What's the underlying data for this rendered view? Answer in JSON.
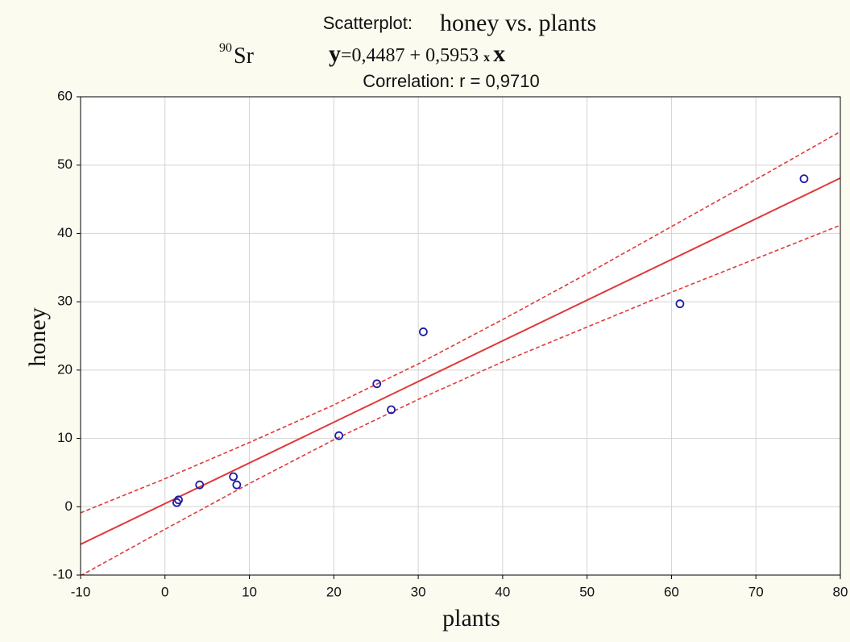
{
  "chart_data": {
    "type": "scatter",
    "title_label": "Scatterplot:",
    "title": "honey vs. plants",
    "isotope_mass": "90",
    "isotope_symbol": "Sr",
    "equation_y": "y",
    "equation_body": "=0,4487 + 0,5953",
    "equation_times": "x",
    "equation_x": "x",
    "correlation": "Correlation: r =  0,9710",
    "x_label": "plants",
    "y_label": "honey",
    "x": [
      1.4,
      1.6,
      4.1,
      8.1,
      8.5,
      20.6,
      25.1,
      26.8,
      30.6,
      61.0,
      75.7
    ],
    "values": [
      0.6,
      1.0,
      3.2,
      4.4,
      3.2,
      10.4,
      18.0,
      14.2,
      25.6,
      29.7,
      48.0
    ],
    "color": "#1c1ca8",
    "fit": {
      "x": [
        -10,
        80
      ],
      "values": [
        -5.5,
        48.1
      ],
      "color": "#e03a3a"
    },
    "confidence_band": {
      "x": [
        -10,
        0,
        10,
        20,
        30,
        40,
        50,
        60,
        70,
        80
      ],
      "upper": [
        -0.9,
        4.1,
        9.4,
        14.9,
        20.9,
        27.4,
        34.1,
        41.0,
        47.9,
        54.9
      ],
      "lower": [
        -10.1,
        -3.3,
        3.4,
        9.8,
        15.7,
        21.2,
        26.3,
        31.4,
        36.3,
        41.2
      ],
      "color": "#e03a3a"
    },
    "xlim": [
      -10,
      80
    ],
    "ylim": [
      -10,
      60
    ],
    "xticks": [
      -10,
      0,
      10,
      20,
      30,
      40,
      50,
      60,
      70,
      80
    ],
    "yticks": [
      -10,
      0,
      10,
      20,
      30,
      40,
      50,
      60
    ],
    "grid": true
  }
}
